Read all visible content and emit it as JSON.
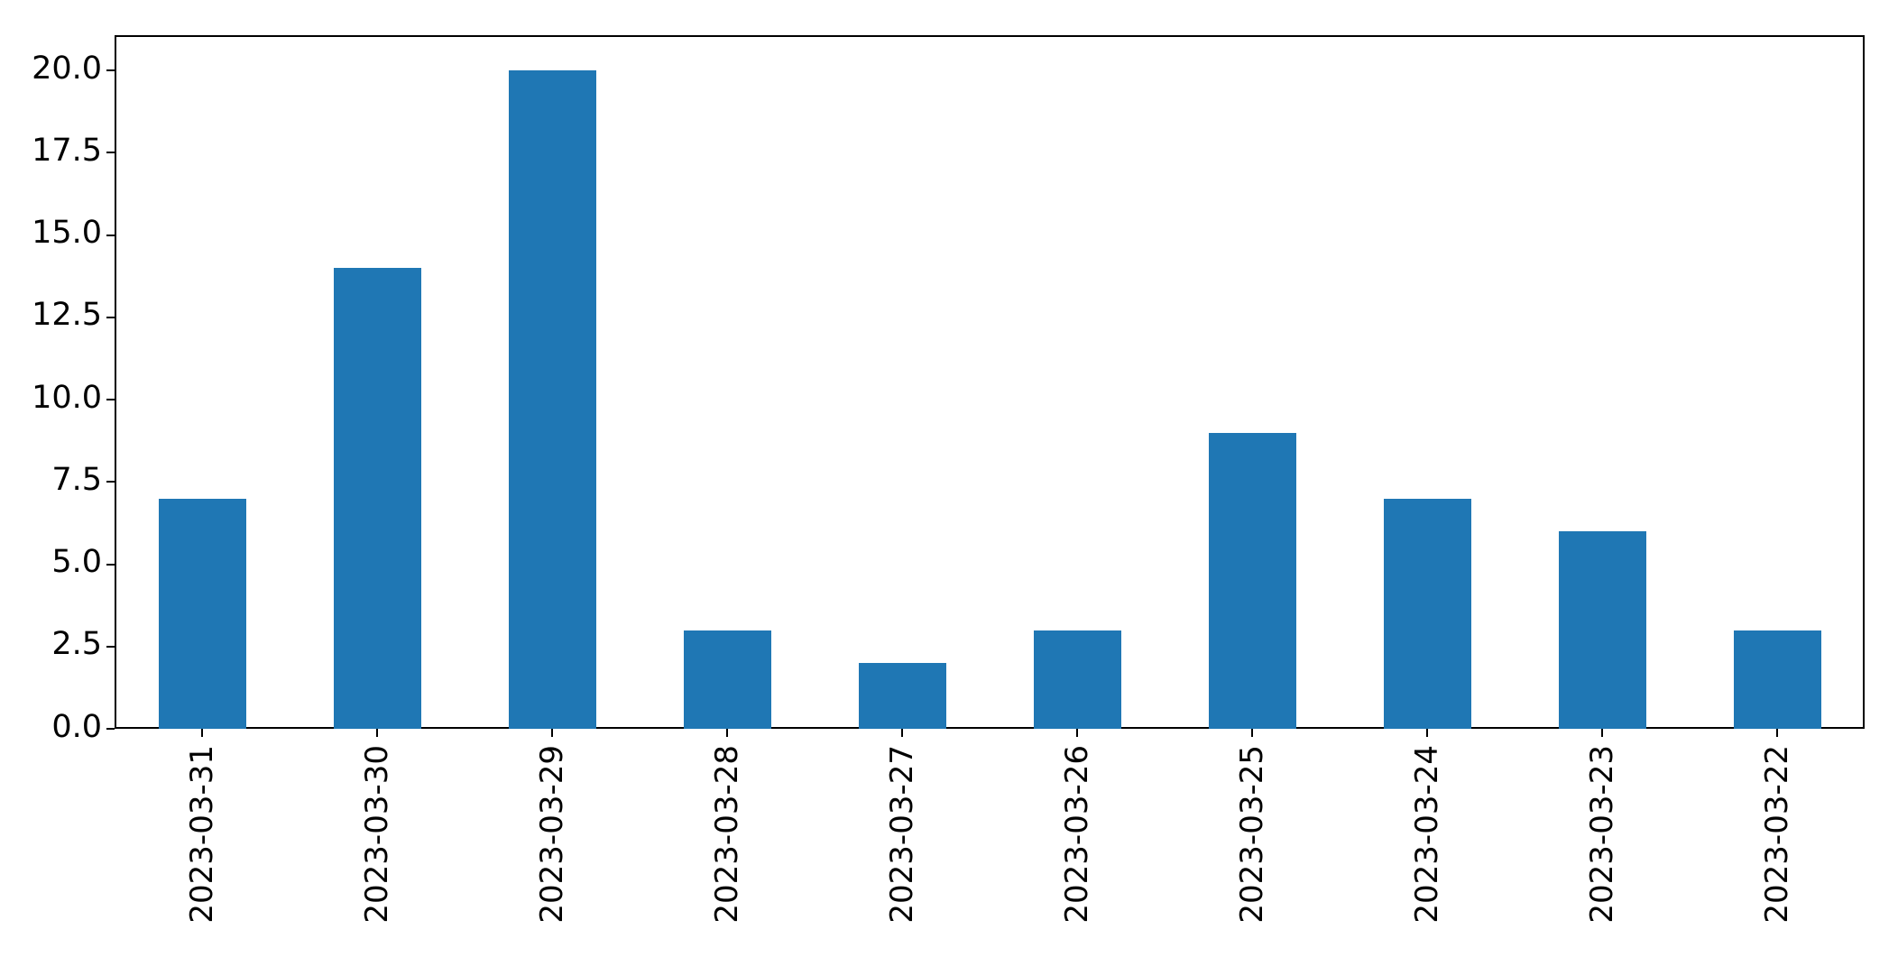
{
  "chart_data": {
    "type": "bar",
    "title": "",
    "xlabel": "",
    "ylabel": "",
    "categories": [
      "2023-03-31",
      "2023-03-30",
      "2023-03-29",
      "2023-03-28",
      "2023-03-27",
      "2023-03-26",
      "2023-03-25",
      "2023-03-24",
      "2023-03-23",
      "2023-03-22"
    ],
    "values": [
      7,
      14,
      20,
      3,
      2,
      3,
      9,
      7,
      6,
      3
    ],
    "yticks": [
      0.0,
      2.5,
      5.0,
      7.5,
      10.0,
      12.5,
      15.0,
      17.5,
      20.0
    ],
    "ytick_labels": [
      "0.0",
      "2.5",
      "5.0",
      "7.5",
      "10.0",
      "12.5",
      "15.0",
      "17.5",
      "20.0"
    ],
    "ylim": [
      0,
      21.1
    ],
    "x_tick_rotation": 90,
    "grid": false,
    "legend": null,
    "bar_color": "#1f77b4",
    "axis_color": "#000000",
    "text_color": "#000000",
    "background_color": "#ffffff"
  }
}
